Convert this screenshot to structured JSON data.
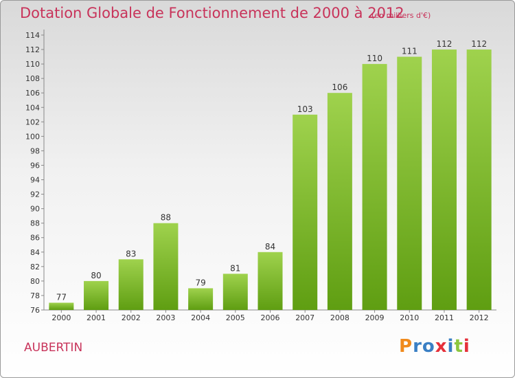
{
  "header": {
    "title": "Dotation Globale de Fonctionnement de 2000 à 2012",
    "subtitle": "(en milliers d'€)"
  },
  "footer": {
    "commune": "AUBERTIN",
    "logo": "Proxiti"
  },
  "colors": {
    "text_accent": "#c8335a",
    "bar_light": "#9fd24d",
    "bar_dark": "#5f9e12",
    "logo_letters": [
      "#f08a1c",
      "#3a7fc4",
      "#3a7fc4",
      "#e5303a",
      "#3a7fc4",
      "#8cc63f",
      "#e5303a"
    ]
  },
  "chart_data": {
    "type": "bar",
    "categories": [
      "2000",
      "2001",
      "2002",
      "2003",
      "2004",
      "2005",
      "2006",
      "2007",
      "2008",
      "2009",
      "2010",
      "2011",
      "2012"
    ],
    "values": [
      77,
      80,
      83,
      88,
      79,
      81,
      84,
      103,
      106,
      110,
      111,
      112,
      112
    ],
    "title": "Dotation Globale de Fonctionnement de 2000 à 2012",
    "subtitle": "(en milliers d'€)",
    "xlabel": "",
    "ylabel": "",
    "ylim": [
      76,
      114
    ],
    "yticks": [
      76,
      78,
      80,
      82,
      84,
      86,
      88,
      90,
      92,
      94,
      96,
      98,
      100,
      102,
      104,
      106,
      108,
      110,
      112,
      114
    ],
    "grid": false,
    "data_labels": true
  }
}
